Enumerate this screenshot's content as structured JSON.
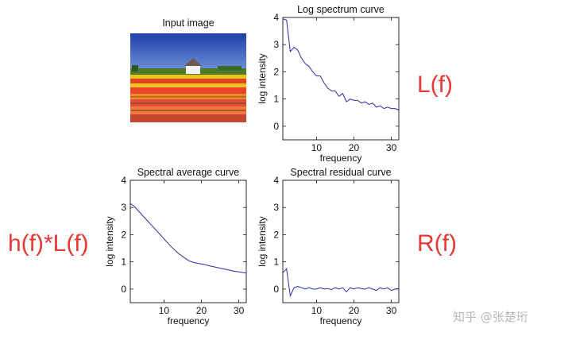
{
  "figure": {
    "input_title": "Input image",
    "labels": {
      "top_right": "L(f)",
      "bottom_left": "h(f)*L(f)",
      "bottom_right": "R(f)"
    },
    "watermark": "知乎 @张楚珩",
    "line_color": "#2b2bb0",
    "label_color": "#e53935"
  },
  "chart_data": [
    {
      "id": "log-spectrum",
      "type": "line",
      "title": "Log spectrum curve",
      "xlabel": "frequency",
      "ylabel": "log intensity",
      "xlim": [
        1,
        32
      ],
      "ylim": [
        -0.5,
        4
      ],
      "xticks": [
        10,
        20,
        30
      ],
      "yticks": [
        0,
        1,
        2,
        3,
        4
      ],
      "x": [
        1,
        2,
        3,
        4,
        5,
        6,
        7,
        8,
        9,
        10,
        11,
        12,
        13,
        14,
        15,
        16,
        17,
        18,
        19,
        20,
        21,
        22,
        23,
        24,
        25,
        26,
        27,
        28,
        29,
        30,
        31,
        32
      ],
      "y": [
        3.95,
        3.9,
        2.75,
        2.9,
        2.8,
        2.5,
        2.3,
        2.2,
        2.0,
        1.85,
        1.85,
        1.6,
        1.4,
        1.3,
        1.3,
        1.1,
        1.2,
        0.9,
        1.0,
        0.95,
        0.95,
        0.85,
        0.9,
        0.8,
        0.85,
        0.7,
        0.75,
        0.65,
        0.7,
        0.65,
        0.65,
        0.6
      ]
    },
    {
      "id": "spectral-average",
      "type": "line",
      "title": "Spectral average curve",
      "xlabel": "frequency",
      "ylabel": "log intensity",
      "xlim": [
        1,
        32
      ],
      "ylim": [
        -0.5,
        4
      ],
      "xticks": [
        10,
        20,
        30
      ],
      "yticks": [
        0,
        1,
        2,
        3,
        4
      ],
      "x": [
        1,
        2,
        3,
        4,
        5,
        6,
        7,
        8,
        9,
        10,
        11,
        12,
        13,
        14,
        15,
        16,
        17,
        18,
        19,
        20,
        21,
        22,
        23,
        24,
        25,
        26,
        27,
        28,
        29,
        30,
        31,
        32
      ],
      "y": [
        3.15,
        3.05,
        2.9,
        2.75,
        2.6,
        2.45,
        2.3,
        2.15,
        2.0,
        1.85,
        1.7,
        1.55,
        1.42,
        1.3,
        1.2,
        1.1,
        1.02,
        0.98,
        0.95,
        0.92,
        0.9,
        0.86,
        0.83,
        0.8,
        0.77,
        0.74,
        0.71,
        0.68,
        0.65,
        0.63,
        0.61,
        0.59
      ]
    },
    {
      "id": "spectral-residual",
      "type": "line",
      "title": "Spectral residual curve",
      "xlabel": "frequency",
      "ylabel": "log intensity",
      "xlim": [
        1,
        32
      ],
      "ylim": [
        -0.5,
        4
      ],
      "xticks": [
        10,
        20,
        30
      ],
      "yticks": [
        0,
        1,
        2,
        3,
        4
      ],
      "x": [
        1,
        2,
        3,
        4,
        5,
        6,
        7,
        8,
        9,
        10,
        11,
        12,
        13,
        14,
        15,
        16,
        17,
        18,
        19,
        20,
        21,
        22,
        23,
        24,
        25,
        26,
        27,
        28,
        29,
        30,
        31,
        32
      ],
      "y": [
        0.6,
        0.75,
        -0.25,
        0.05,
        0.1,
        0.05,
        0.0,
        0.05,
        0.0,
        0.0,
        0.05,
        0.0,
        0.02,
        -0.02,
        0.05,
        0.0,
        0.05,
        -0.1,
        0.05,
        0.0,
        0.05,
        0.02,
        0.0,
        0.05,
        0.0,
        -0.05,
        0.05,
        0.0,
        0.05,
        -0.05,
        0.0,
        0.02
      ]
    }
  ]
}
